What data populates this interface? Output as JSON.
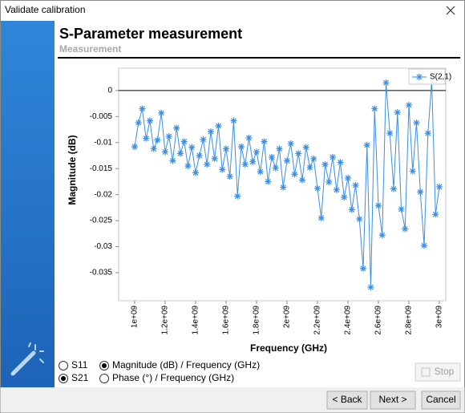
{
  "window": {
    "title": "Validate calibration"
  },
  "header": {
    "title": "S-Parameter measurement",
    "subtitle": "Measurement"
  },
  "chart_data": {
    "type": "line",
    "xlabel": "Frequency (GHz)",
    "ylabel": "Magnitude (dB)",
    "x": [
      1000000000,
      1025000000,
      1050000000,
      1075000000,
      1100000000,
      1125000000,
      1150000000,
      1175000000,
      1200000000,
      1225000000,
      1250000000,
      1275000000,
      1300000000,
      1325000000,
      1350000000,
      1375000000,
      1400000000,
      1425000000,
      1450000000,
      1475000000,
      1500000000,
      1525000000,
      1550000000,
      1575000000,
      1600000000,
      1625000000,
      1650000000,
      1675000000,
      1700000000,
      1725000000,
      1750000000,
      1775000000,
      1800000000,
      1825000000,
      1850000000,
      1875000000,
      1900000000,
      1925000000,
      1950000000,
      1975000000,
      2000000000,
      2025000000,
      2050000000,
      2075000000,
      2100000000,
      2125000000,
      2150000000,
      2175000000,
      2200000000,
      2225000000,
      2250000000,
      2275000000,
      2300000000,
      2325000000,
      2350000000,
      2375000000,
      2400000000,
      2425000000,
      2450000000,
      2475000000,
      2500000000,
      2525000000,
      2550000000,
      2575000000,
      2600000000,
      2625000000,
      2650000000,
      2675000000,
      2700000000,
      2725000000,
      2750000000,
      2775000000,
      2800000000,
      2825000000,
      2850000000,
      2875000000,
      2900000000,
      2925000000,
      2950000000,
      2975000000,
      3000000000
    ],
    "series": [
      {
        "name": "S(2,1)",
        "color": "#3a8ee6",
        "values": [
          -0.0108,
          -0.0062,
          -0.0035,
          -0.0092,
          -0.0058,
          -0.0112,
          -0.0095,
          -0.0043,
          -0.0118,
          -0.0088,
          -0.0135,
          -0.0072,
          -0.0121,
          -0.0098,
          -0.0145,
          -0.0109,
          -0.0158,
          -0.0125,
          -0.0094,
          -0.0142,
          -0.0079,
          -0.0131,
          -0.0068,
          -0.0152,
          -0.0112,
          -0.0165,
          -0.0058,
          -0.0203,
          -0.0108,
          -0.0142,
          -0.0091,
          -0.0137,
          -0.0118,
          -0.0156,
          -0.0098,
          -0.0175,
          -0.0128,
          -0.0149,
          -0.0112,
          -0.0186,
          -0.0135,
          -0.0102,
          -0.0161,
          -0.0121,
          -0.0172,
          -0.0109,
          -0.0148,
          -0.0131,
          -0.0188,
          -0.0245,
          -0.0142,
          -0.0176,
          -0.0128,
          -0.0191,
          -0.0138,
          -0.0205,
          -0.0168,
          -0.0229,
          -0.0182,
          -0.0247,
          -0.0342,
          -0.0105,
          -0.0378,
          -0.0035,
          -0.0221,
          -0.0278,
          0.0015,
          -0.0082,
          -0.0189,
          -0.0042,
          -0.0228,
          -0.0266,
          -0.0028,
          -0.0155,
          -0.0062,
          -0.0195,
          -0.0298,
          -0.0082,
          0.0018,
          -0.0238,
          -0.0185
        ]
      }
    ],
    "xlim": [
      895000000,
      3042000000
    ],
    "ylim": [
      -0.0404,
      0.0043
    ],
    "xticks": [
      {
        "value": 1000000000,
        "label": "1e+09"
      },
      {
        "value": 1200000000,
        "label": "1.2e+09"
      },
      {
        "value": 1400000000,
        "label": "1.4e+09"
      },
      {
        "value": 1600000000,
        "label": "1.6e+09"
      },
      {
        "value": 1800000000,
        "label": "1.8e+09"
      },
      {
        "value": 2000000000,
        "label": "2e+09"
      },
      {
        "value": 2200000000,
        "label": "2.2e+09"
      },
      {
        "value": 2400000000,
        "label": "2.4e+09"
      },
      {
        "value": 2600000000,
        "label": "2.6e+09"
      },
      {
        "value": 2800000000,
        "label": "2.8e+09"
      },
      {
        "value": 3000000000,
        "label": "3e+09"
      }
    ],
    "yticks": [
      -0.035,
      -0.03,
      -0.025,
      -0.02,
      -0.015,
      -0.01,
      -0.005,
      0
    ],
    "legend": "upper right",
    "marker": "star"
  },
  "options": {
    "ports": [
      {
        "label": "S11",
        "checked": false
      },
      {
        "label": "S21",
        "checked": true
      }
    ],
    "views": [
      {
        "label": "Magnitude (dB) / Frequency (GHz)",
        "checked": true
      },
      {
        "label": "Phase (°) / Frequency (GHz)",
        "checked": false
      }
    ]
  },
  "buttons": {
    "stop": {
      "label": "Stop",
      "enabled": false
    },
    "back": {
      "label": "< Back",
      "enabled": true
    },
    "next": {
      "label": "Next >",
      "enabled": true
    },
    "cancel": {
      "label": "Cancel",
      "enabled": true
    }
  }
}
